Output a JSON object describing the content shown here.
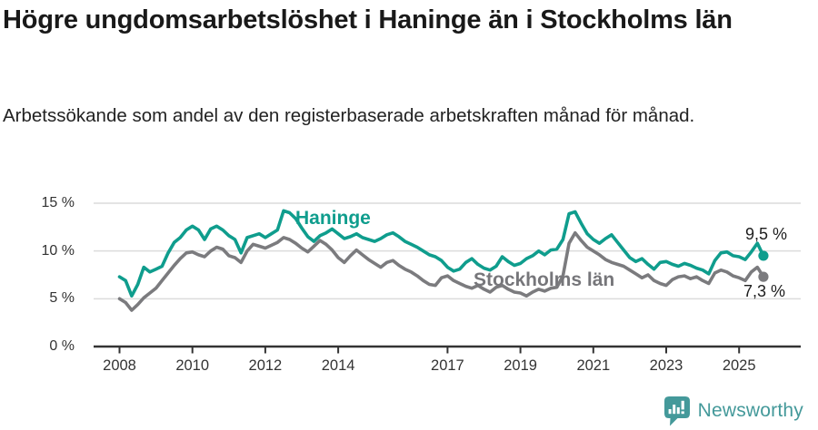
{
  "header": {
    "title": "Högre ungdomsarbetslöshet i Haninge än i Stockholms län",
    "subtitle": "Arbetssökande som andel av den registerbaserade arbetskraften månad för månad."
  },
  "chart_data": {
    "type": "line",
    "title": "Högre ungdomsarbetslöshet i Haninge än i Stockholms län",
    "subtitle": "Arbetssökande som andel av den registerbaserade arbetskraften månad för månad.",
    "unit": "%",
    "x_start": 2008.0,
    "x_step": 0.1666667,
    "x_tick_labels": [
      "2008",
      "2010",
      "2012",
      "2014",
      "2017",
      "2019",
      "2021",
      "2023",
      "2025"
    ],
    "x_tick_years": [
      2008,
      2010,
      2012,
      2014,
      2017,
      2019,
      2021,
      2023,
      2025
    ],
    "y_ticks": [
      0,
      5,
      10,
      15
    ],
    "y_tick_labels": [
      "0 %",
      "5 %",
      "10 %",
      "15 %"
    ],
    "ylim": [
      0,
      15.8
    ],
    "xlim": [
      2007.3,
      2026.6
    ],
    "grid": "horizontal",
    "legend_position": "inline-labels",
    "series": [
      {
        "name": "Stockholms län",
        "color": "#7b7b7e",
        "label_color": "#76767a",
        "end_label": "7,3 %",
        "end_value": 7.3,
        "values": [
          5.0,
          4.6,
          3.8,
          4.4,
          5.1,
          5.6,
          6.1,
          6.9,
          7.7,
          8.5,
          9.2,
          9.8,
          9.9,
          9.6,
          9.4,
          10.0,
          10.4,
          10.2,
          9.5,
          9.3,
          8.8,
          10.0,
          10.7,
          10.5,
          10.3,
          10.6,
          10.9,
          11.4,
          11.2,
          10.8,
          10.3,
          9.9,
          10.5,
          11.1,
          10.7,
          10.1,
          9.3,
          8.8,
          9.5,
          10.1,
          9.6,
          9.1,
          8.7,
          8.3,
          8.8,
          9.0,
          8.5,
          8.1,
          7.8,
          7.4,
          6.9,
          6.5,
          6.4,
          7.2,
          7.4,
          6.9,
          6.6,
          6.3,
          6.1,
          6.4,
          6.0,
          5.7,
          6.2,
          6.4,
          6.0,
          5.7,
          5.6,
          5.3,
          5.7,
          6.0,
          5.8,
          6.1,
          6.2,
          7.4,
          10.8,
          11.9,
          11.1,
          10.4,
          10.0,
          9.6,
          9.1,
          8.8,
          8.6,
          8.4,
          8.0,
          7.6,
          7.2,
          7.5,
          6.9,
          6.6,
          6.4,
          7.0,
          7.3,
          7.4,
          7.1,
          7.3,
          6.9,
          6.6,
          7.7,
          8.0,
          7.8,
          7.4,
          7.2,
          6.9,
          7.8,
          8.3,
          7.3
        ]
      },
      {
        "name": "Haninge",
        "color": "#0f9d8d",
        "label_color": "#0f9d8d",
        "end_label": "9,5 %",
        "end_value": 9.5,
        "values": [
          7.3,
          6.9,
          5.3,
          6.5,
          8.3,
          7.8,
          8.1,
          8.4,
          9.8,
          10.9,
          11.4,
          12.2,
          12.6,
          12.2,
          11.2,
          12.3,
          12.6,
          12.2,
          11.6,
          11.2,
          9.8,
          11.4,
          11.6,
          11.8,
          11.4,
          11.8,
          12.2,
          14.2,
          14.0,
          13.4,
          12.4,
          11.5,
          11.0,
          11.6,
          11.9,
          12.3,
          11.8,
          11.3,
          11.5,
          11.8,
          11.4,
          11.2,
          11.0,
          11.3,
          11.7,
          11.9,
          11.5,
          11.0,
          10.7,
          10.4,
          10.0,
          9.6,
          9.4,
          9.0,
          8.3,
          7.9,
          8.1,
          8.8,
          9.2,
          8.6,
          8.2,
          8.0,
          8.4,
          9.4,
          8.9,
          8.5,
          8.7,
          9.2,
          9.5,
          10.0,
          9.6,
          10.1,
          10.2,
          11.2,
          13.9,
          14.1,
          12.9,
          11.8,
          11.2,
          10.8,
          11.3,
          11.7,
          10.9,
          10.1,
          9.3,
          8.9,
          9.2,
          8.6,
          8.1,
          8.8,
          8.9,
          8.6,
          8.4,
          8.7,
          8.5,
          8.2,
          8.0,
          7.6,
          9.0,
          9.8,
          9.9,
          9.5,
          9.4,
          9.1,
          9.9,
          10.8,
          9.5
        ]
      }
    ]
  },
  "branding": {
    "logo_text": "Newsworthy",
    "logo_icon": "bar-chart-speech-bubble-icon",
    "brand_color": "#44999a"
  },
  "colors": {
    "haninge_line": "#0f9d8d",
    "stockholm_line": "#7b7b7e",
    "gridline": "#dcdcdc",
    "axis": "#333333"
  }
}
